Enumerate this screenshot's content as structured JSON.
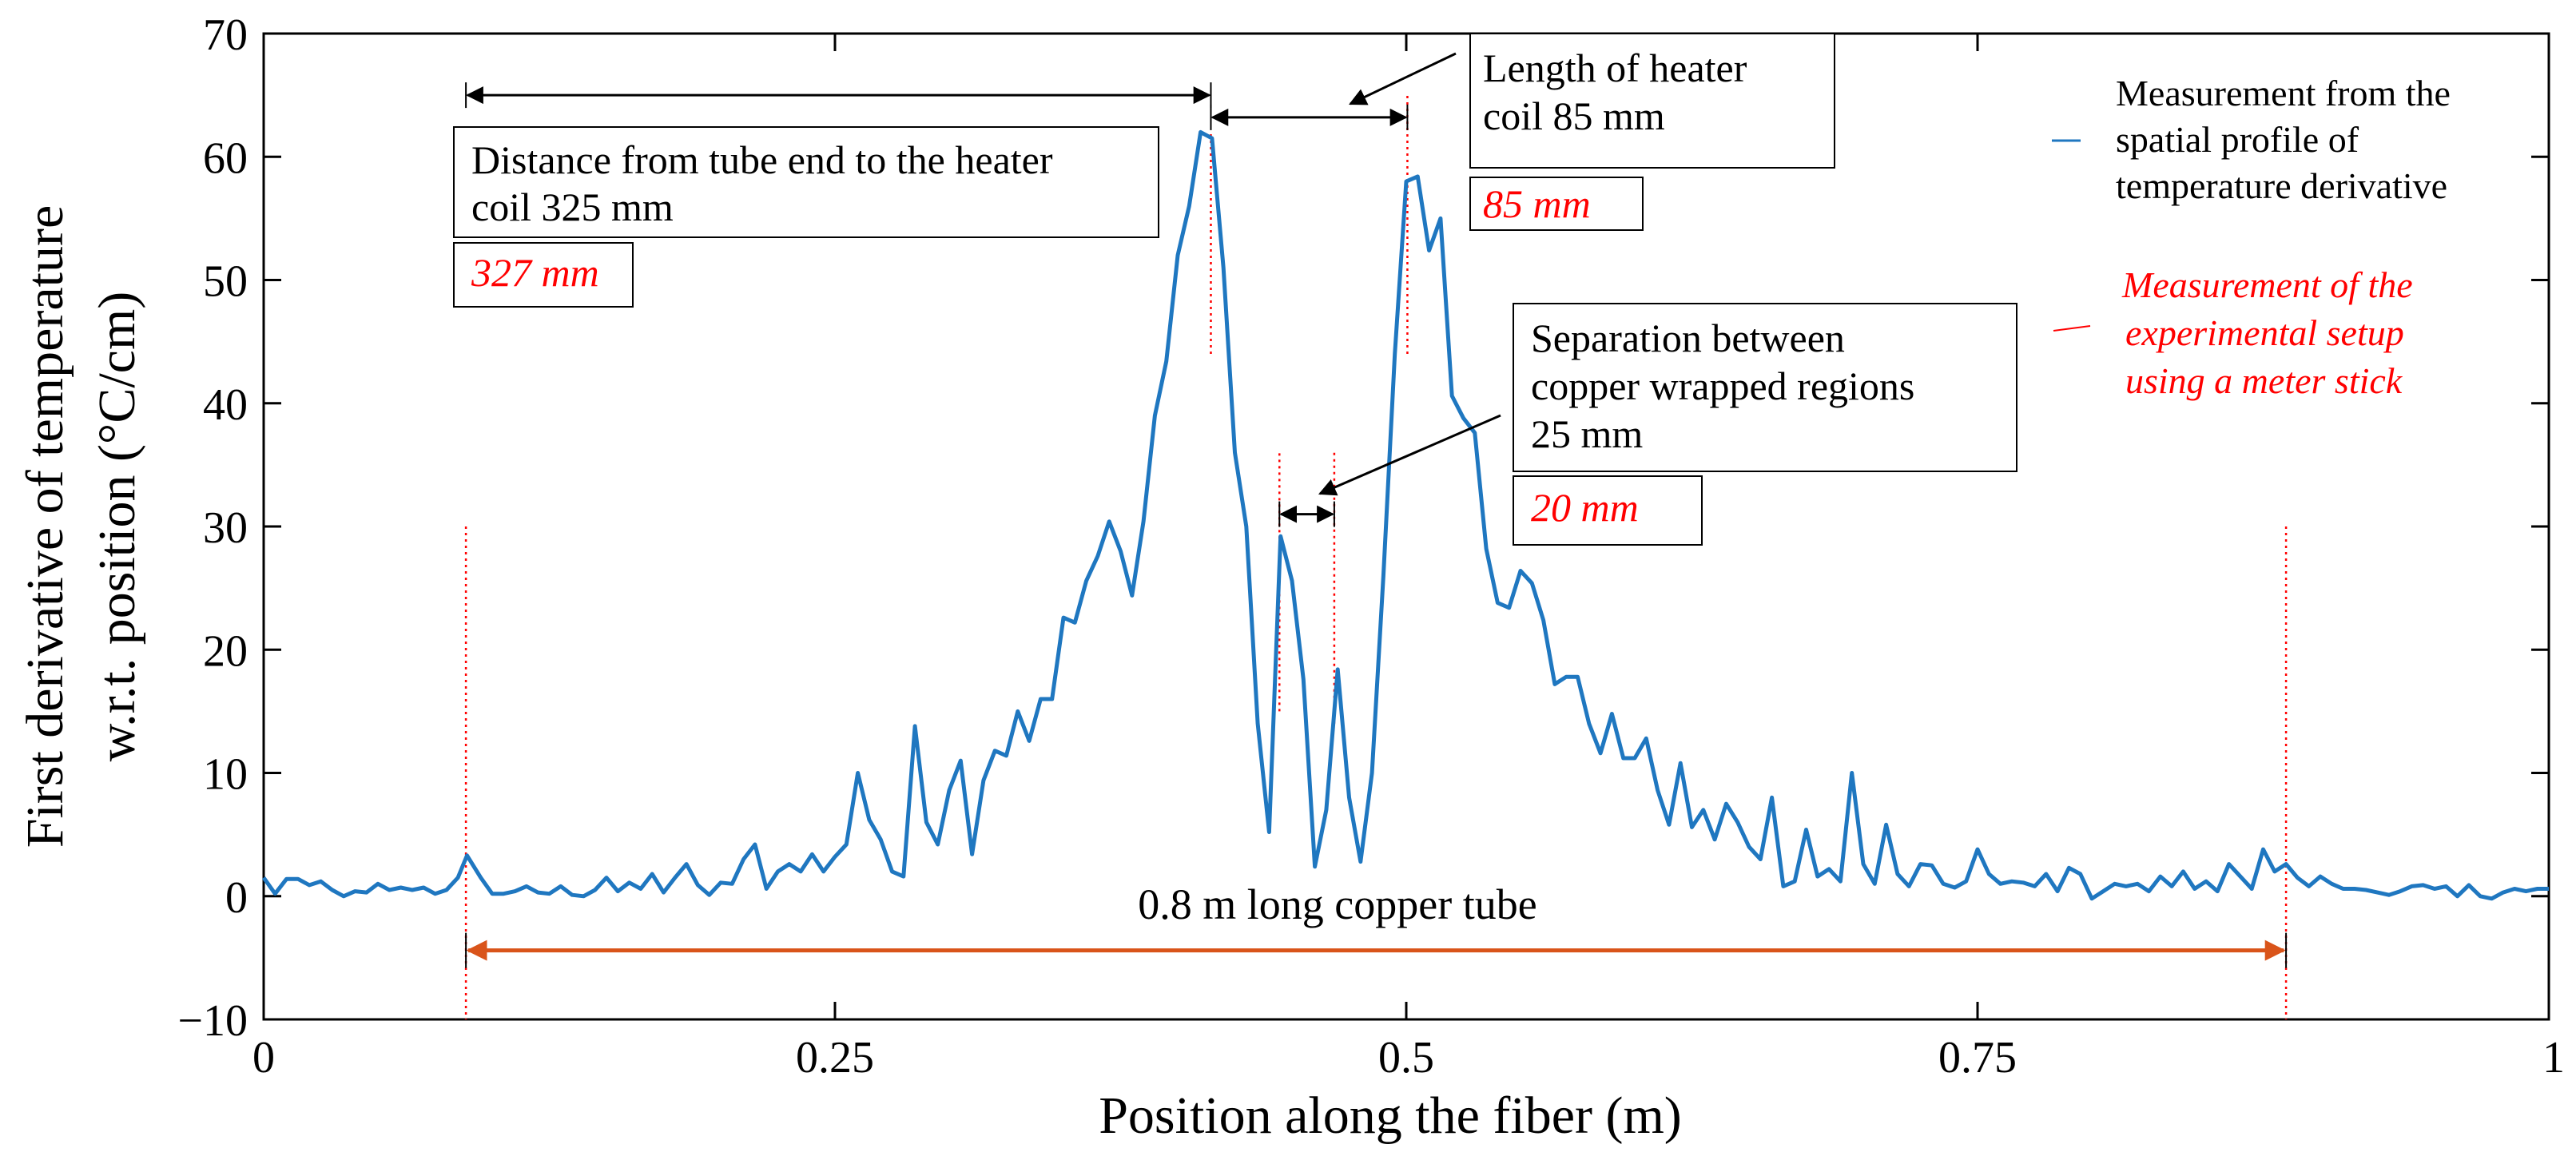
{
  "chart_data": {
    "type": "line",
    "xlabel": "Position along the fiber (m)",
    "ylabel_lines": [
      "First derivative of temperature",
      "w.r.t. position (°C/cm)"
    ],
    "xlim": [
      0,
      1
    ],
    "ylim": [
      -10,
      70
    ],
    "x_ticks": [
      {
        "value": 0,
        "label": "0"
      },
      {
        "value": 0.25,
        "label": "0.25"
      },
      {
        "value": 0.5,
        "label": "0.5"
      },
      {
        "value": 0.75,
        "label": "0.75"
      },
      {
        "value": 1,
        "label": "1"
      }
    ],
    "y_ticks": [
      {
        "value": -10,
        "label": "−10"
      },
      {
        "value": 0,
        "label": "0"
      },
      {
        "value": 10,
        "label": "10"
      },
      {
        "value": 20,
        "label": "20"
      },
      {
        "value": 30,
        "label": "30"
      },
      {
        "value": 40,
        "label": "40"
      },
      {
        "value": 50,
        "label": "50"
      },
      {
        "value": 60,
        "label": "60"
      },
      {
        "value": 70,
        "label": "70"
      }
    ],
    "grid": false,
    "colors": {
      "series": "#1f77c0",
      "meter_stick": "#ff0000",
      "tube_arrow": "#d9541a",
      "axis": "#000000"
    },
    "series": [
      {
        "name": "Measurement from the spatial profile of temperature derivative",
        "points": [
          [
            0,
            1.5
          ],
          [
            0.005,
            0.2
          ],
          [
            0.01,
            1.4
          ],
          [
            0.015,
            1.4
          ],
          [
            0.02,
            0.9
          ],
          [
            0.025,
            1.2
          ],
          [
            0.03,
            0.5
          ],
          [
            0.035,
            0
          ],
          [
            0.04,
            0.4
          ],
          [
            0.045,
            0.3
          ],
          [
            0.05,
            1
          ],
          [
            0.055,
            0.5
          ],
          [
            0.06,
            0.7
          ],
          [
            0.065,
            0.5
          ],
          [
            0.07,
            0.7
          ],
          [
            0.075,
            0.2
          ],
          [
            0.08,
            0.5
          ],
          [
            0.085,
            1.5
          ],
          [
            0.089,
            3.3
          ],
          [
            0.095,
            1.5
          ],
          [
            0.1,
            0.2
          ],
          [
            0.105,
            0.2
          ],
          [
            0.11,
            0.4
          ],
          [
            0.115,
            0.8
          ],
          [
            0.12,
            0.3
          ],
          [
            0.125,
            0.2
          ],
          [
            0.13,
            0.8
          ],
          [
            0.135,
            0.1
          ],
          [
            0.14,
            0
          ],
          [
            0.145,
            0.5
          ],
          [
            0.15,
            1.5
          ],
          [
            0.155,
            0.4
          ],
          [
            0.16,
            1.1
          ],
          [
            0.165,
            0.6
          ],
          [
            0.17,
            1.8
          ],
          [
            0.175,
            0.3
          ],
          [
            0.18,
            1.5
          ],
          [
            0.185,
            2.6
          ],
          [
            0.19,
            0.9
          ],
          [
            0.195,
            0.1
          ],
          [
            0.2,
            1.1
          ],
          [
            0.205,
            1
          ],
          [
            0.21,
            3
          ],
          [
            0.215,
            4.2
          ],
          [
            0.22,
            0.6
          ],
          [
            0.225,
            2
          ],
          [
            0.23,
            2.6
          ],
          [
            0.235,
            2
          ],
          [
            0.24,
            3.4
          ],
          [
            0.245,
            2
          ],
          [
            0.25,
            3.2
          ],
          [
            0.255,
            4.2
          ],
          [
            0.26,
            10
          ],
          [
            0.265,
            6.2
          ],
          [
            0.27,
            4.6
          ],
          [
            0.275,
            2
          ],
          [
            0.28,
            1.6
          ],
          [
            0.285,
            13.8
          ],
          [
            0.29,
            6
          ],
          [
            0.295,
            4.2
          ],
          [
            0.3,
            8.6
          ],
          [
            0.305,
            11
          ],
          [
            0.31,
            3.4
          ],
          [
            0.315,
            9.4
          ],
          [
            0.32,
            11.8
          ],
          [
            0.325,
            11.4
          ],
          [
            0.33,
            15
          ],
          [
            0.335,
            12.6
          ],
          [
            0.34,
            16
          ],
          [
            0.345,
            16
          ],
          [
            0.35,
            22.6
          ],
          [
            0.355,
            22.2
          ],
          [
            0.36,
            25.6
          ],
          [
            0.365,
            27.6
          ],
          [
            0.37,
            30.4
          ],
          [
            0.375,
            28
          ],
          [
            0.38,
            24.4
          ],
          [
            0.385,
            30.4
          ],
          [
            0.39,
            39
          ],
          [
            0.395,
            43.4
          ],
          [
            0.4,
            52
          ],
          [
            0.405,
            56
          ],
          [
            0.41,
            62
          ],
          [
            0.415,
            61.5
          ],
          [
            0.42,
            51
          ],
          [
            0.425,
            36
          ],
          [
            0.43,
            30
          ],
          [
            0.435,
            14
          ],
          [
            0.44,
            5.2
          ],
          [
            0.445,
            29.2
          ],
          [
            0.45,
            25.6
          ],
          [
            0.455,
            17.6
          ],
          [
            0.46,
            2.4
          ],
          [
            0.465,
            7
          ],
          [
            0.47,
            18.4
          ],
          [
            0.475,
            8
          ],
          [
            0.48,
            2.8
          ],
          [
            0.485,
            10
          ],
          [
            0.49,
            26
          ],
          [
            0.495,
            44
          ],
          [
            0.5,
            58
          ],
          [
            0.505,
            58.4
          ],
          [
            0.51,
            52.4
          ],
          [
            0.515,
            55
          ],
          [
            0.52,
            40.6
          ],
          [
            0.525,
            38.8
          ],
          [
            0.53,
            37.6
          ],
          [
            0.535,
            28.2
          ],
          [
            0.54,
            23.8
          ],
          [
            0.545,
            23.4
          ],
          [
            0.55,
            26.4
          ],
          [
            0.555,
            25.4
          ],
          [
            0.56,
            22.4
          ],
          [
            0.565,
            17.2
          ],
          [
            0.57,
            17.8
          ],
          [
            0.575,
            17.8
          ],
          [
            0.58,
            14
          ],
          [
            0.585,
            11.6
          ],
          [
            0.59,
            14.8
          ],
          [
            0.595,
            11.2
          ],
          [
            0.6,
            11.2
          ],
          [
            0.605,
            12.8
          ],
          [
            0.61,
            8.6
          ],
          [
            0.615,
            5.8
          ],
          [
            0.62,
            10.8
          ],
          [
            0.625,
            5.6
          ],
          [
            0.63,
            7
          ],
          [
            0.635,
            4.6
          ],
          [
            0.64,
            7.5
          ],
          [
            0.645,
            6
          ],
          [
            0.65,
            4
          ],
          [
            0.655,
            3
          ],
          [
            0.66,
            8
          ],
          [
            0.665,
            0.8
          ],
          [
            0.67,
            1.2
          ],
          [
            0.675,
            5.4
          ],
          [
            0.68,
            1.6
          ],
          [
            0.685,
            2.2
          ],
          [
            0.69,
            1.2
          ],
          [
            0.695,
            10
          ],
          [
            0.7,
            2.6
          ],
          [
            0.705,
            1
          ],
          [
            0.71,
            5.8
          ],
          [
            0.715,
            1.8
          ],
          [
            0.72,
            0.8
          ],
          [
            0.725,
            2.6
          ],
          [
            0.73,
            2.5
          ],
          [
            0.735,
            1
          ],
          [
            0.74,
            0.7
          ],
          [
            0.745,
            1.2
          ],
          [
            0.75,
            3.8
          ],
          [
            0.755,
            1.8
          ],
          [
            0.76,
            1
          ],
          [
            0.765,
            1.2
          ],
          [
            0.77,
            1.1
          ],
          [
            0.775,
            0.8
          ],
          [
            0.78,
            1.8
          ],
          [
            0.785,
            0.4
          ],
          [
            0.79,
            2.3
          ],
          [
            0.795,
            1.8
          ],
          [
            0.8,
            -0.2
          ],
          [
            0.805,
            0.4
          ],
          [
            0.81,
            1
          ],
          [
            0.815,
            0.8
          ],
          [
            0.82,
            1
          ],
          [
            0.825,
            0.4
          ],
          [
            0.83,
            1.6
          ],
          [
            0.835,
            0.8
          ],
          [
            0.84,
            2
          ],
          [
            0.845,
            0.6
          ],
          [
            0.85,
            1.2
          ],
          [
            0.855,
            0.4
          ],
          [
            0.86,
            2.6
          ],
          [
            0.865,
            1.6
          ],
          [
            0.87,
            0.6
          ],
          [
            0.875,
            3.8
          ],
          [
            0.88,
            2
          ],
          [
            0.885,
            2.6
          ],
          [
            0.89,
            1.5
          ],
          [
            0.895,
            0.8
          ],
          [
            0.9,
            1.6
          ],
          [
            0.905,
            1
          ],
          [
            0.91,
            0.6
          ],
          [
            0.915,
            0.6
          ],
          [
            0.92,
            0.5
          ],
          [
            0.925,
            0.3
          ],
          [
            0.93,
            0.1
          ],
          [
            0.935,
            0.4
          ],
          [
            0.94,
            0.8
          ],
          [
            0.945,
            0.9
          ],
          [
            0.95,
            0.6
          ],
          [
            0.955,
            0.8
          ],
          [
            0.96,
            0
          ],
          [
            0.965,
            0.9
          ],
          [
            0.97,
            0
          ],
          [
            0.975,
            -0.2
          ],
          [
            0.98,
            0.3
          ],
          [
            0.985,
            0.6
          ],
          [
            0.99,
            0.4
          ],
          [
            0.995,
            0.6
          ],
          [
            1,
            0.6
          ]
        ]
      }
    ],
    "reference_lines": [
      {
        "x": 0.0885,
        "y1": 30,
        "y2": -10
      },
      {
        "x": 0.4145,
        "y1": 44,
        "y2": 62
      },
      {
        "x": 0.4445,
        "y1": 15,
        "y2": 36
      },
      {
        "x": 0.4685,
        "y1": 14,
        "y2": 36
      },
      {
        "x": 0.5005,
        "y1": 44,
        "y2": 65
      },
      {
        "x": 0.885,
        "y1": 30,
        "y2": -10
      }
    ],
    "annotations": [
      {
        "lines": [
          "Distance from tube end to the heater",
          "coil 325 mm"
        ],
        "meter_stick_value": "327 mm",
        "dimension_arrow": {
          "x1": 0.0885,
          "x2": 0.4145,
          "y": 65
        }
      },
      {
        "lines": [
          "Length of heater",
          "coil 85 mm"
        ],
        "meter_stick_value": "85 mm",
        "dimension_arrow": {
          "x1": 0.4145,
          "x2": 0.5005,
          "y": 63.2
        }
      },
      {
        "lines": [
          "Separation between",
          "copper wrapped regions",
          "25 mm"
        ],
        "meter_stick_value": "20 mm",
        "dimension_arrow": {
          "x1": 0.4445,
          "x2": 0.4685,
          "y": 31
        }
      },
      {
        "lines": [
          "0.8 m long copper tube"
        ],
        "dimension_arrow": {
          "x1": 0.0885,
          "x2": 0.885,
          "y": -4.4
        }
      }
    ],
    "legend": {
      "placement": "top-right",
      "entries": [
        {
          "lines": [
            "Measurement from the",
            "spatial profile of",
            "temperature derivative"
          ]
        },
        {
          "lines": [
            "Measurement of the",
            "experimental setup",
            "using a meter stick"
          ]
        }
      ]
    }
  }
}
